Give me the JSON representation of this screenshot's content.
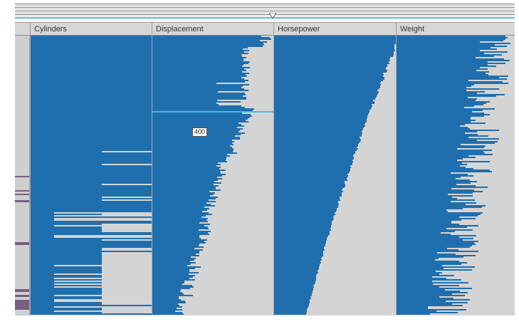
{
  "columns": [
    {
      "label": "Cylinders"
    },
    {
      "label": "Displacement"
    },
    {
      "label": "Horsepower"
    },
    {
      "label": "Weight"
    }
  ],
  "tooltip": {
    "value": "400"
  },
  "colors": {
    "bar": "#1f6fae",
    "background": "#d4d4d4",
    "brush": "#45b9ec",
    "marker": "#7a5d83"
  }
}
